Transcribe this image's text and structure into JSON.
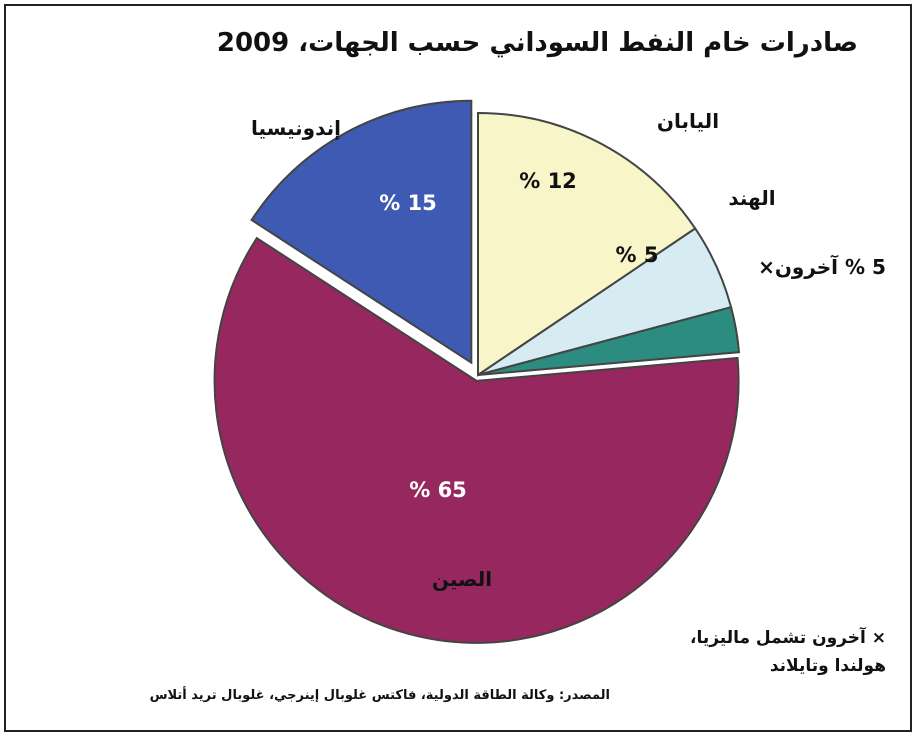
{
  "title": "صادرات خام النفط السوداني حسب الجهات، 2009",
  "footnote": "× آخرون تشمل ماليزيا، هولندا وتايلاند",
  "source": "المصدر: وكالة الطاقة الدولية، فاكتس غلوبال إينرجي، غلوبال تريد أتلاس",
  "colors": {
    "japan": "#f8f6c8",
    "india": "#d6ebf2",
    "others": "#2d8c80",
    "china": "#97285f",
    "indonesia": "#3f5ab2"
  },
  "chart_data": {
    "type": "pie",
    "title": "صادرات خام النفط السوداني حسب الجهات، 2009",
    "slices": [
      {
        "key": "japan",
        "label": "اليابان",
        "value": 12,
        "value_label": "12 %"
      },
      {
        "key": "india",
        "label": "الهند",
        "value": 5,
        "value_label": "5 %"
      },
      {
        "key": "others",
        "label": "آخرون×",
        "value": 5,
        "value_label": "5 %"
      },
      {
        "key": "china",
        "label": "الصين",
        "value": 65,
        "value_label": "65 %"
      },
      {
        "key": "indonesia",
        "label": "إندونيسيا",
        "value": 15,
        "value_label": "15 %"
      }
    ]
  }
}
